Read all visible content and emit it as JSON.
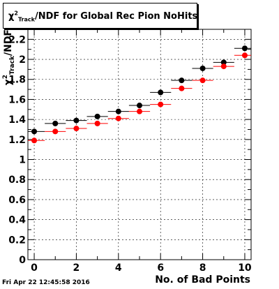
{
  "title": {
    "chi": "χ",
    "sup": "2",
    "sub": "Track",
    "rest": "/NDF for Global Rec Pion NoHits"
  },
  "timestamp": "Fri Apr 22 12:45:58 2016",
  "chart_data": {
    "type": "scatter",
    "xlabel": "No. of Bad Points",
    "ylabel": {
      "chi": "χ",
      "sup": "2",
      "sub": "Track",
      "rest": "/NDF"
    },
    "xlim": [
      -0.3,
      10.3
    ],
    "ylim": [
      0,
      2.3
    ],
    "x_ticks": [
      0,
      2,
      4,
      6,
      8,
      10
    ],
    "y_ticks": [
      0,
      0.2,
      0.4,
      0.6,
      0.8,
      1,
      1.2,
      1.4,
      1.6,
      1.8,
      2,
      2.2
    ],
    "x_tick_labels": [
      "0",
      "2",
      "4",
      "6",
      "8",
      "10"
    ],
    "y_tick_labels": [
      "0",
      "0.2",
      "0.4",
      "0.6",
      "0.8",
      "1",
      "1.2",
      "1.4",
      "1.6",
      "1.8",
      "2",
      "2.2"
    ],
    "grid": true,
    "x_error": 0.5,
    "series": [
      {
        "color": "#000000",
        "x": [
          0,
          1,
          2,
          3,
          4,
          5,
          6,
          7,
          8,
          9,
          10
        ],
        "y": [
          1.28,
          1.36,
          1.39,
          1.43,
          1.48,
          1.54,
          1.67,
          1.79,
          1.91,
          1.97,
          2.11
        ]
      },
      {
        "color": "#ff0000",
        "x": [
          0,
          1,
          2,
          3,
          4,
          5,
          6,
          7,
          8,
          9,
          10
        ],
        "y": [
          1.19,
          1.28,
          1.31,
          1.36,
          1.41,
          1.48,
          1.55,
          1.71,
          1.79,
          1.93,
          2.04
        ]
      }
    ]
  }
}
